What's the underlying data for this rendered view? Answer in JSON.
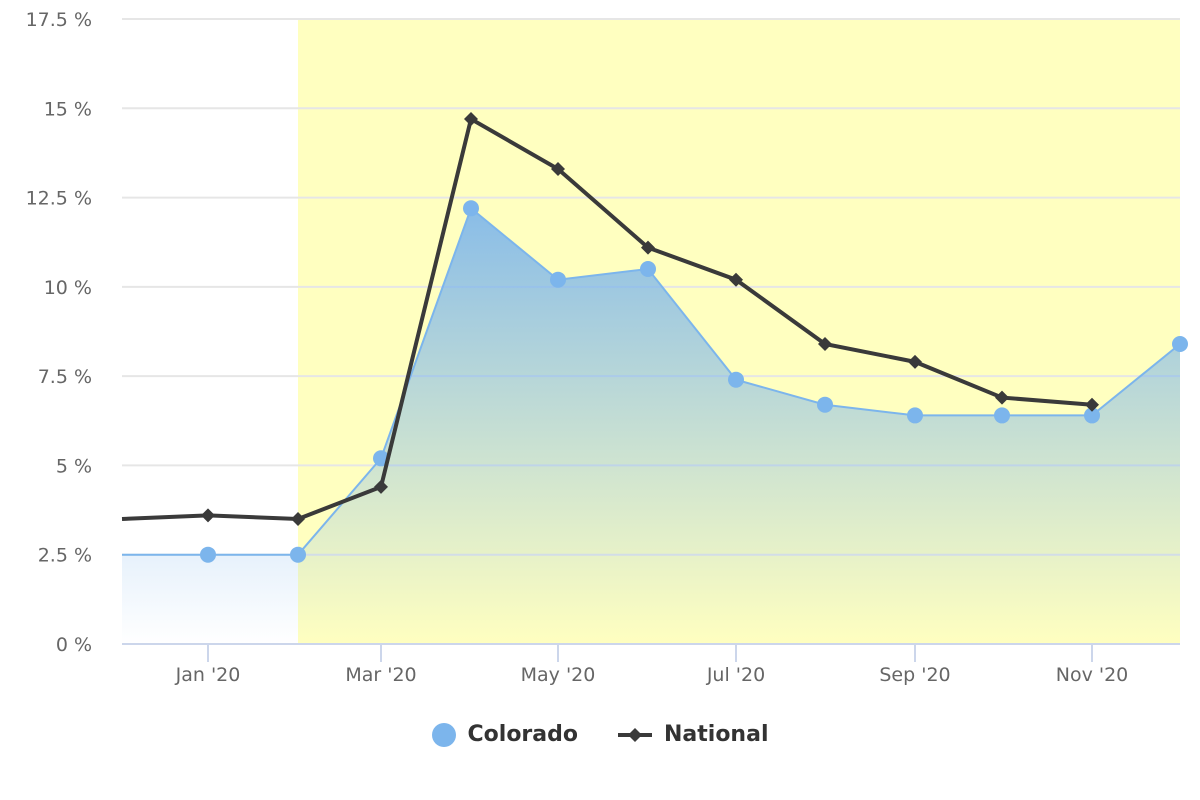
{
  "chart_data": {
    "type": "line",
    "title": "",
    "xlabel": "",
    "ylabel": "",
    "categories": [
      "Dec '19",
      "Jan '20",
      "Feb '20",
      "Mar '20",
      "Apr '20",
      "May '20",
      "Jun '20",
      "Jul '20",
      "Aug '20",
      "Sep '20",
      "Oct '20",
      "Nov '20",
      "Dec '20"
    ],
    "x_tick_labels": [
      "Jan '20",
      "Mar '20",
      "May '20",
      "Jul '20",
      "Sep '20",
      "Nov '20"
    ],
    "y_tick_labels": [
      "0 %",
      "2.5 %",
      "5 %",
      "7.5 %",
      "10 %",
      "12.5 %",
      "15 %",
      "17.5 %"
    ],
    "ylim": [
      0,
      17.5
    ],
    "grid": true,
    "legend_position": "bottom",
    "highlight_band": {
      "from": "Feb '20",
      "to": "Dec '20",
      "color": "#ffffc0"
    },
    "series": [
      {
        "name": "Colorado",
        "type": "area",
        "color": "#7cb5ec",
        "marker": "circle",
        "x": [
          "Jan '20",
          "Feb '20",
          "Mar '20",
          "Apr '20",
          "May '20",
          "Jun '20",
          "Jul '20",
          "Aug '20",
          "Sep '20",
          "Oct '20",
          "Nov '20",
          "Dec '20"
        ],
        "values": [
          2.5,
          2.5,
          5.2,
          12.2,
          10.2,
          10.5,
          7.4,
          6.7,
          6.4,
          6.4,
          6.4,
          8.4
        ]
      },
      {
        "name": "National",
        "type": "line",
        "color": "#3a3a3a",
        "marker": "diamond",
        "x": [
          "Jan '20",
          "Feb '20",
          "Mar '20",
          "Apr '20",
          "May '20",
          "Jun '20",
          "Jul '20",
          "Aug '20",
          "Sep '20",
          "Oct '20",
          "Nov '20"
        ],
        "values": [
          3.6,
          3.5,
          4.4,
          14.7,
          13.3,
          11.1,
          10.2,
          8.4,
          7.9,
          6.9,
          6.7
        ]
      }
    ]
  },
  "legend": {
    "items": [
      {
        "label": "Colorado"
      },
      {
        "label": "National"
      }
    ]
  }
}
